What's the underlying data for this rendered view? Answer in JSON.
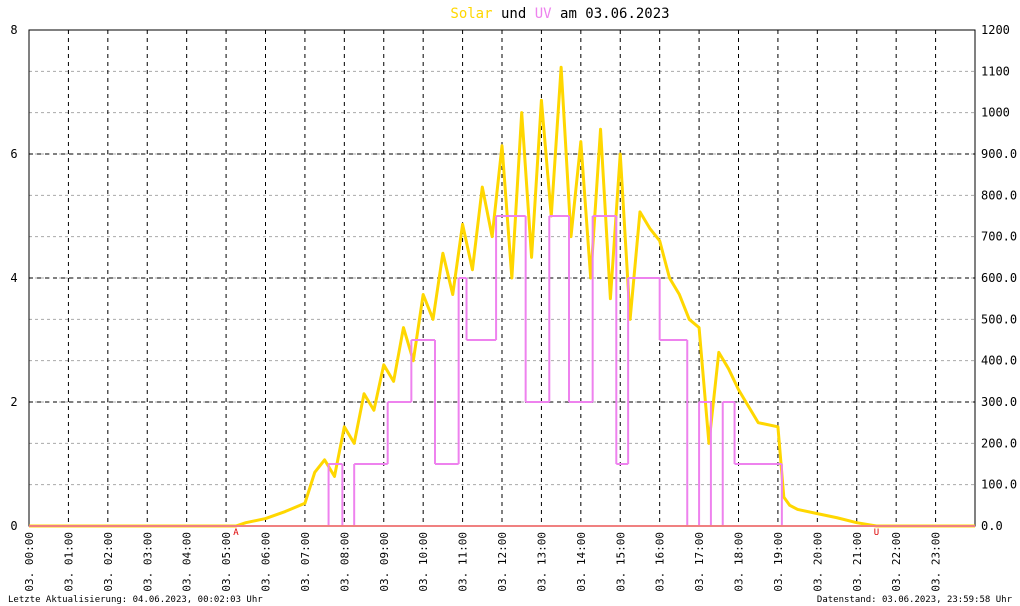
{
  "chart_data": {
    "type": "line",
    "title_join": "und",
    "title_suffix": "am 03.06.2023",
    "xlim": [
      0,
      24
    ],
    "xticks": [
      {
        "value": 0,
        "label": "03. 00:00"
      },
      {
        "value": 1,
        "label": "03. 01:00"
      },
      {
        "value": 2,
        "label": "03. 02:00"
      },
      {
        "value": 3,
        "label": "03. 03:00"
      },
      {
        "value": 4,
        "label": "03. 04:00"
      },
      {
        "value": 5,
        "label": "03. 05:00"
      },
      {
        "value": 6,
        "label": "03. 06:00"
      },
      {
        "value": 7,
        "label": "03. 07:00"
      },
      {
        "value": 8,
        "label": "03. 08:00"
      },
      {
        "value": 9,
        "label": "03. 09:00"
      },
      {
        "value": 10,
        "label": "03. 10:00"
      },
      {
        "value": 11,
        "label": "03. 11:00"
      },
      {
        "value": 12,
        "label": "03. 12:00"
      },
      {
        "value": 13,
        "label": "03. 13:00"
      },
      {
        "value": 14,
        "label": "03. 14:00"
      },
      {
        "value": 15,
        "label": "03. 15:00"
      },
      {
        "value": 16,
        "label": "03. 16:00"
      },
      {
        "value": 17,
        "label": "03. 17:00"
      },
      {
        "value": 18,
        "label": "03. 18:00"
      },
      {
        "value": 19,
        "label": "03. 19:00"
      },
      {
        "value": 20,
        "label": "03. 20:00"
      },
      {
        "value": 21,
        "label": "03. 21:00"
      },
      {
        "value": 22,
        "label": "03. 22:00"
      },
      {
        "value": 23,
        "label": "03. 23:00"
      }
    ],
    "ylim": [
      0,
      8
    ],
    "yticks": [
      0,
      2,
      4,
      6,
      8
    ],
    "y2lim": [
      0,
      1200
    ],
    "y2ticks": [
      {
        "value": 0,
        "label": "0.0"
      },
      {
        "value": 100,
        "label": "100.0"
      },
      {
        "value": 200,
        "label": "200.0"
      },
      {
        "value": 300,
        "label": "300.0"
      },
      {
        "value": 400,
        "label": "400.0"
      },
      {
        "value": 500,
        "label": "500.0"
      },
      {
        "value": 600,
        "label": "600.0"
      },
      {
        "value": 700,
        "label": "700.0"
      },
      {
        "value": 800,
        "label": "800.0"
      },
      {
        "value": 900,
        "label": "900.0"
      },
      1000,
      1100,
      1200
    ],
    "grid": true,
    "series": [
      {
        "name": "Solar",
        "color": "#ffd700",
        "axis": "y2",
        "x": [
          0,
          5.25,
          5.5,
          6,
          6.5,
          7,
          7.25,
          7.5,
          7.75,
          8,
          8.25,
          8.5,
          8.75,
          9,
          9.25,
          9.5,
          9.75,
          10,
          10.25,
          10.5,
          10.75,
          11,
          11.25,
          11.5,
          11.75,
          12,
          12.25,
          12.5,
          12.75,
          13,
          13.25,
          13.5,
          13.75,
          14,
          14.25,
          14.5,
          14.75,
          15,
          15.25,
          15.5,
          15.75,
          16,
          16.25,
          16.5,
          16.75,
          17,
          17.25,
          17.5,
          17.75,
          18,
          18.5,
          19,
          19.15,
          19.3,
          19.5,
          20,
          20.5,
          21,
          21.5,
          24
        ],
        "values": [
          0,
          0,
          8,
          18,
          35,
          55,
          130,
          160,
          120,
          240,
          200,
          320,
          280,
          390,
          350,
          480,
          400,
          560,
          500,
          660,
          560,
          730,
          620,
          820,
          700,
          920,
          600,
          1000,
          650,
          1030,
          750,
          1110,
          700,
          930,
          600,
          960,
          550,
          900,
          500,
          760,
          720,
          690,
          600,
          560,
          500,
          480,
          200,
          420,
          380,
          330,
          250,
          240,
          70,
          50,
          40,
          30,
          20,
          8,
          0,
          0
        ]
      },
      {
        "name": "UV",
        "color": "#ee82ee",
        "step": true,
        "x": [
          0,
          7.6,
          7.95,
          8.25,
          9.1,
          9.7,
          10.3,
          10.9,
          11.1,
          11.85,
          12.6,
          13.2,
          13.7,
          14.3,
          14.9,
          15.2,
          16.0,
          16.7,
          17.0,
          17.3,
          17.6,
          17.9,
          19.1,
          24
        ],
        "values": [
          0,
          1,
          0,
          1,
          2,
          3,
          1,
          4,
          3,
          5,
          2,
          5,
          2,
          5,
          1,
          4,
          3,
          0,
          2,
          0,
          2,
          1,
          0,
          0
        ]
      }
    ],
    "annotations": [
      {
        "x": 5.25,
        "label": "A"
      },
      {
        "x": 21.5,
        "label": "U"
      }
    ],
    "footer_left": "Letzte Aktualisierung: 04.06.2023, 00:02:03 Uhr",
    "footer_right": "Datenstand: 03.06.2023, 23:59:58 Uhr"
  }
}
